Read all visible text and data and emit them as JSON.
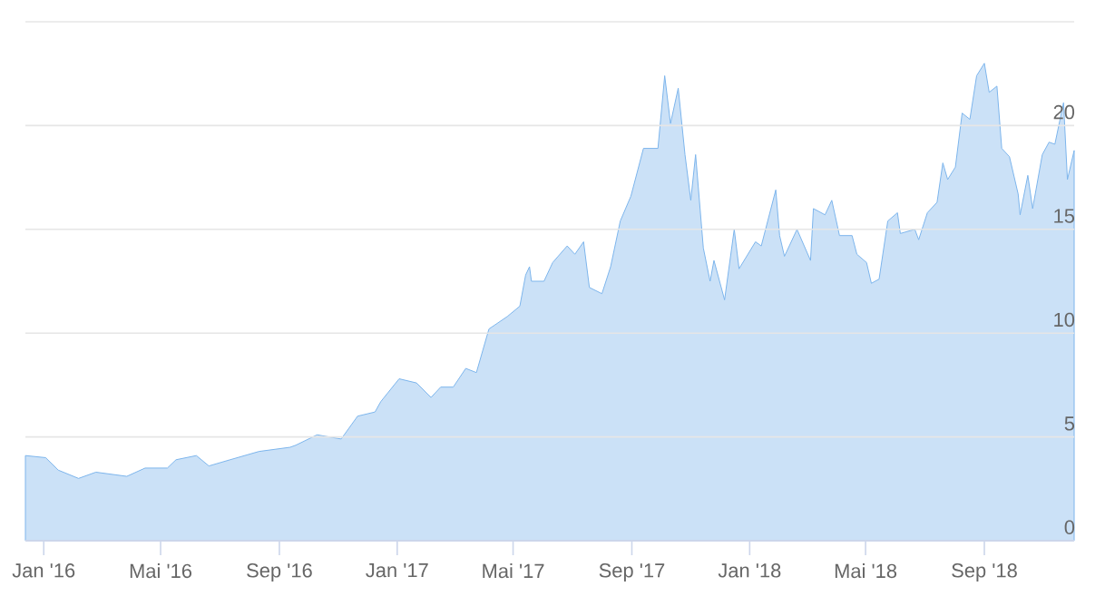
{
  "chart_data": {
    "type": "area",
    "color": "#7cb5ec",
    "x": [
      "2015-12-13",
      "2016-01-03",
      "2016-01-16",
      "2016-02-06",
      "2016-02-24",
      "2016-03-27",
      "2016-04-15",
      "2016-05-08",
      "2016-05-17",
      "2016-06-07",
      "2016-06-20",
      "2016-07-12",
      "2016-08-11",
      "2016-09-12",
      "2016-09-18",
      "2016-10-10",
      "2016-11-04",
      "2016-11-21",
      "2016-12-09",
      "2016-12-15",
      "2017-01-03",
      "2017-01-21",
      "2017-02-05",
      "2017-02-15",
      "2017-02-28",
      "2017-03-13",
      "2017-03-24",
      "2017-04-06",
      "2017-04-25",
      "2017-05-08",
      "2017-05-14",
      "2017-05-18",
      "2017-05-20",
      "2017-06-02",
      "2017-06-11",
      "2017-06-26",
      "2017-07-04",
      "2017-07-13",
      "2017-07-19",
      "2017-08-01",
      "2017-08-10",
      "2017-08-20",
      "2017-08-31",
      "2017-09-13",
      "2017-09-28",
      "2017-10-05",
      "2017-10-11",
      "2017-10-19",
      "2017-10-26",
      "2017-11-01",
      "2017-11-06",
      "2017-11-14",
      "2017-11-21",
      "2017-11-25",
      "2017-12-06",
      "2017-12-16",
      "2017-12-21",
      "2018-01-07",
      "2018-01-13",
      "2018-01-28",
      "2018-02-01",
      "2018-02-06",
      "2018-02-19",
      "2018-03-05",
      "2018-03-08",
      "2018-03-20",
      "2018-03-27",
      "2018-04-04",
      "2018-04-17",
      "2018-04-22",
      "2018-05-02",
      "2018-05-07",
      "2018-05-15",
      "2018-05-24",
      "2018-06-03",
      "2018-06-06",
      "2018-06-21",
      "2018-06-25",
      "2018-07-04",
      "2018-07-14",
      "2018-07-20",
      "2018-07-25",
      "2018-08-02",
      "2018-08-09",
      "2018-08-17",
      "2018-08-24",
      "2018-09-01",
      "2018-09-06",
      "2018-09-14",
      "2018-09-19",
      "2018-09-27",
      "2018-10-06",
      "2018-10-08",
      "2018-10-16",
      "2018-10-21",
      "2018-10-31",
      "2018-11-07",
      "2018-11-13",
      "2018-11-22",
      "2018-11-26",
      "2018-12-03"
    ],
    "values": [
      4.1,
      4.0,
      3.4,
      3.0,
      3.3,
      3.1,
      3.5,
      3.5,
      3.9,
      4.1,
      3.6,
      3.9,
      4.3,
      4.5,
      4.6,
      5.1,
      4.9,
      6.0,
      6.2,
      6.7,
      7.8,
      7.6,
      6.9,
      7.4,
      7.4,
      8.3,
      8.1,
      10.2,
      10.8,
      11.3,
      12.8,
      13.2,
      12.5,
      12.5,
      13.4,
      14.2,
      13.8,
      14.4,
      12.2,
      11.9,
      13.2,
      15.4,
      16.6,
      18.9,
      18.9,
      22.4,
      20.1,
      21.8,
      18.6,
      16.4,
      18.6,
      14.1,
      12.5,
      13.5,
      11.6,
      15.0,
      13.1,
      14.4,
      14.2,
      16.9,
      14.7,
      13.7,
      15.0,
      13.5,
      16.0,
      15.7,
      16.4,
      14.7,
      14.7,
      13.8,
      13.4,
      12.4,
      12.6,
      15.4,
      15.8,
      14.8,
      15.0,
      14.5,
      15.8,
      16.3,
      18.2,
      17.4,
      18.0,
      20.6,
      20.3,
      22.4,
      23.0,
      21.6,
      21.9,
      18.9,
      18.5,
      16.7,
      15.7,
      17.6,
      16.0,
      18.6,
      19.2,
      19.1,
      21.1,
      17.4,
      18.8
    ],
    "xlim": [
      "2015-12-13",
      "2018-12-03"
    ],
    "xticks": [
      {
        "value": "2016-01-01",
        "label": "Jan '16"
      },
      {
        "value": "2016-05-01",
        "label": "Mai '16"
      },
      {
        "value": "2016-09-01",
        "label": "Sep '16"
      },
      {
        "value": "2017-01-01",
        "label": "Jan '17"
      },
      {
        "value": "2017-05-01",
        "label": "Mai '17"
      },
      {
        "value": "2017-09-01",
        "label": "Sep '17"
      },
      {
        "value": "2018-01-01",
        "label": "Jan '18"
      },
      {
        "value": "2018-05-01",
        "label": "Mai '18"
      },
      {
        "value": "2018-09-01",
        "label": "Sep '18"
      }
    ],
    "ylim": [
      0,
      25
    ],
    "yticks": [
      0,
      5,
      10,
      15,
      20,
      {
        "value": 25,
        "label": null
      }
    ],
    "grid": "y"
  }
}
